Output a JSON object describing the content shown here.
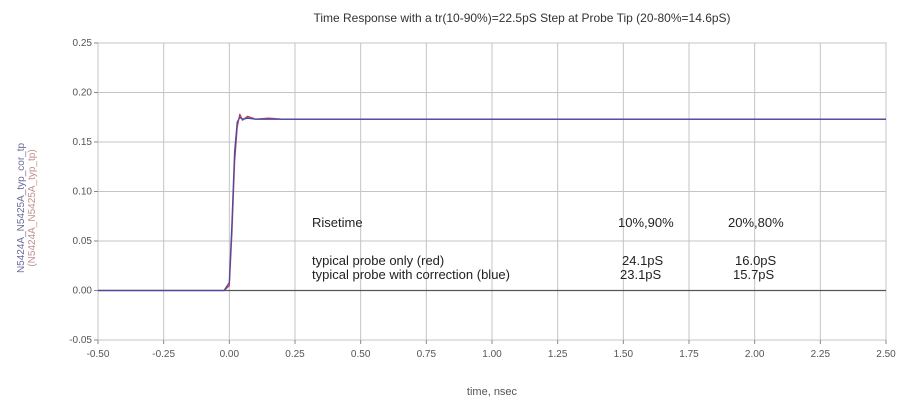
{
  "chart_data": {
    "type": "line",
    "title": "Time Response with a tr(10-90%)=22.5pS Step at Probe Tip (20-80%=14.6pS)",
    "xlabel": "time, nsec",
    "ylabel": [
      "N5424A_N5425A_typ_cor_tp",
      "(N5424A_N5425A_typ_tp)"
    ],
    "xlim": [
      -0.5,
      2.5
    ],
    "ylim": [
      -0.05,
      0.25
    ],
    "xticks": [
      "-0.50",
      "-0.25",
      "0.00",
      "0.25",
      "0.50",
      "0.75",
      "1.00",
      "1.25",
      "1.50",
      "1.75",
      "2.00",
      "2.25",
      "2.50"
    ],
    "yticks": [
      "0.25",
      "0.20",
      "0.15",
      "0.10",
      "0.05",
      "0.00",
      "-0.05"
    ],
    "grid": true,
    "series": [
      {
        "color": "#c0404a",
        "x": [
          -0.5,
          -0.1,
          -0.02,
          0.0,
          0.01,
          0.02,
          0.03,
          0.04,
          0.05,
          0.07,
          0.1,
          0.15,
          0.2,
          0.5,
          1.0,
          1.5,
          2.0,
          2.5
        ],
        "y": [
          0.0,
          0.0,
          0.0,
          0.005,
          0.06,
          0.13,
          0.165,
          0.178,
          0.172,
          0.176,
          0.173,
          0.174,
          0.173,
          0.173,
          0.173,
          0.173,
          0.173,
          0.173
        ]
      },
      {
        "color": "#4a4aa8",
        "x": [
          -0.5,
          -0.1,
          -0.02,
          0.0,
          0.01,
          0.02,
          0.03,
          0.04,
          0.05,
          0.07,
          0.1,
          0.15,
          0.2,
          0.5,
          1.0,
          1.5,
          2.0,
          2.5
        ],
        "y": [
          0.0,
          0.0,
          0.0,
          0.008,
          0.07,
          0.14,
          0.17,
          0.175,
          0.173,
          0.174,
          0.173,
          0.173,
          0.173,
          0.173,
          0.173,
          0.173,
          0.173,
          0.173
        ]
      }
    ],
    "annotations": {
      "heading": "Risetime",
      "col1": "10%,90%",
      "col2": "20%,80%",
      "rows": [
        {
          "label": "typical probe only (red)",
          "v1": "24.1pS",
          "v2": "16.0pS"
        },
        {
          "label": "typical probe with correction (blue)",
          "v1": "23.1pS",
          "v2": "15.7pS"
        }
      ]
    }
  }
}
